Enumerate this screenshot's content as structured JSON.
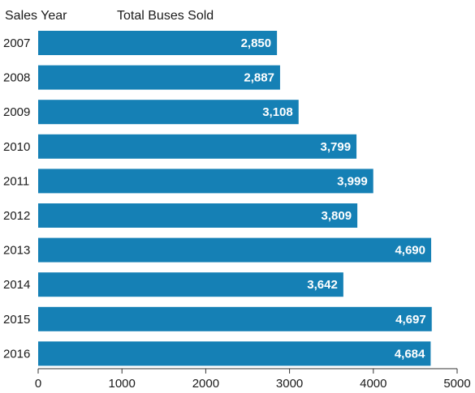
{
  "chart_data": {
    "type": "bar",
    "orientation": "horizontal",
    "column_headers": [
      "Sales Year",
      "Total Buses Sold"
    ],
    "categories": [
      "2007",
      "2008",
      "2009",
      "2010",
      "2011",
      "2012",
      "2013",
      "2014",
      "2015",
      "2016"
    ],
    "values": [
      2850,
      2887,
      3108,
      3799,
      3999,
      3809,
      4690,
      3642,
      4697,
      4684
    ],
    "value_labels": [
      "2,850",
      "2,887",
      "3,108",
      "3,799",
      "3,999",
      "3,809",
      "4,690",
      "3,642",
      "4,697",
      "4,684"
    ],
    "xlim": [
      0,
      5000
    ],
    "xticks": [
      0,
      1000,
      2000,
      3000,
      4000,
      5000
    ],
    "xtick_labels": [
      "0",
      "1000",
      "2000",
      "3000",
      "4000",
      "5000"
    ],
    "bar_color": "#1580b5",
    "grid": false
  }
}
